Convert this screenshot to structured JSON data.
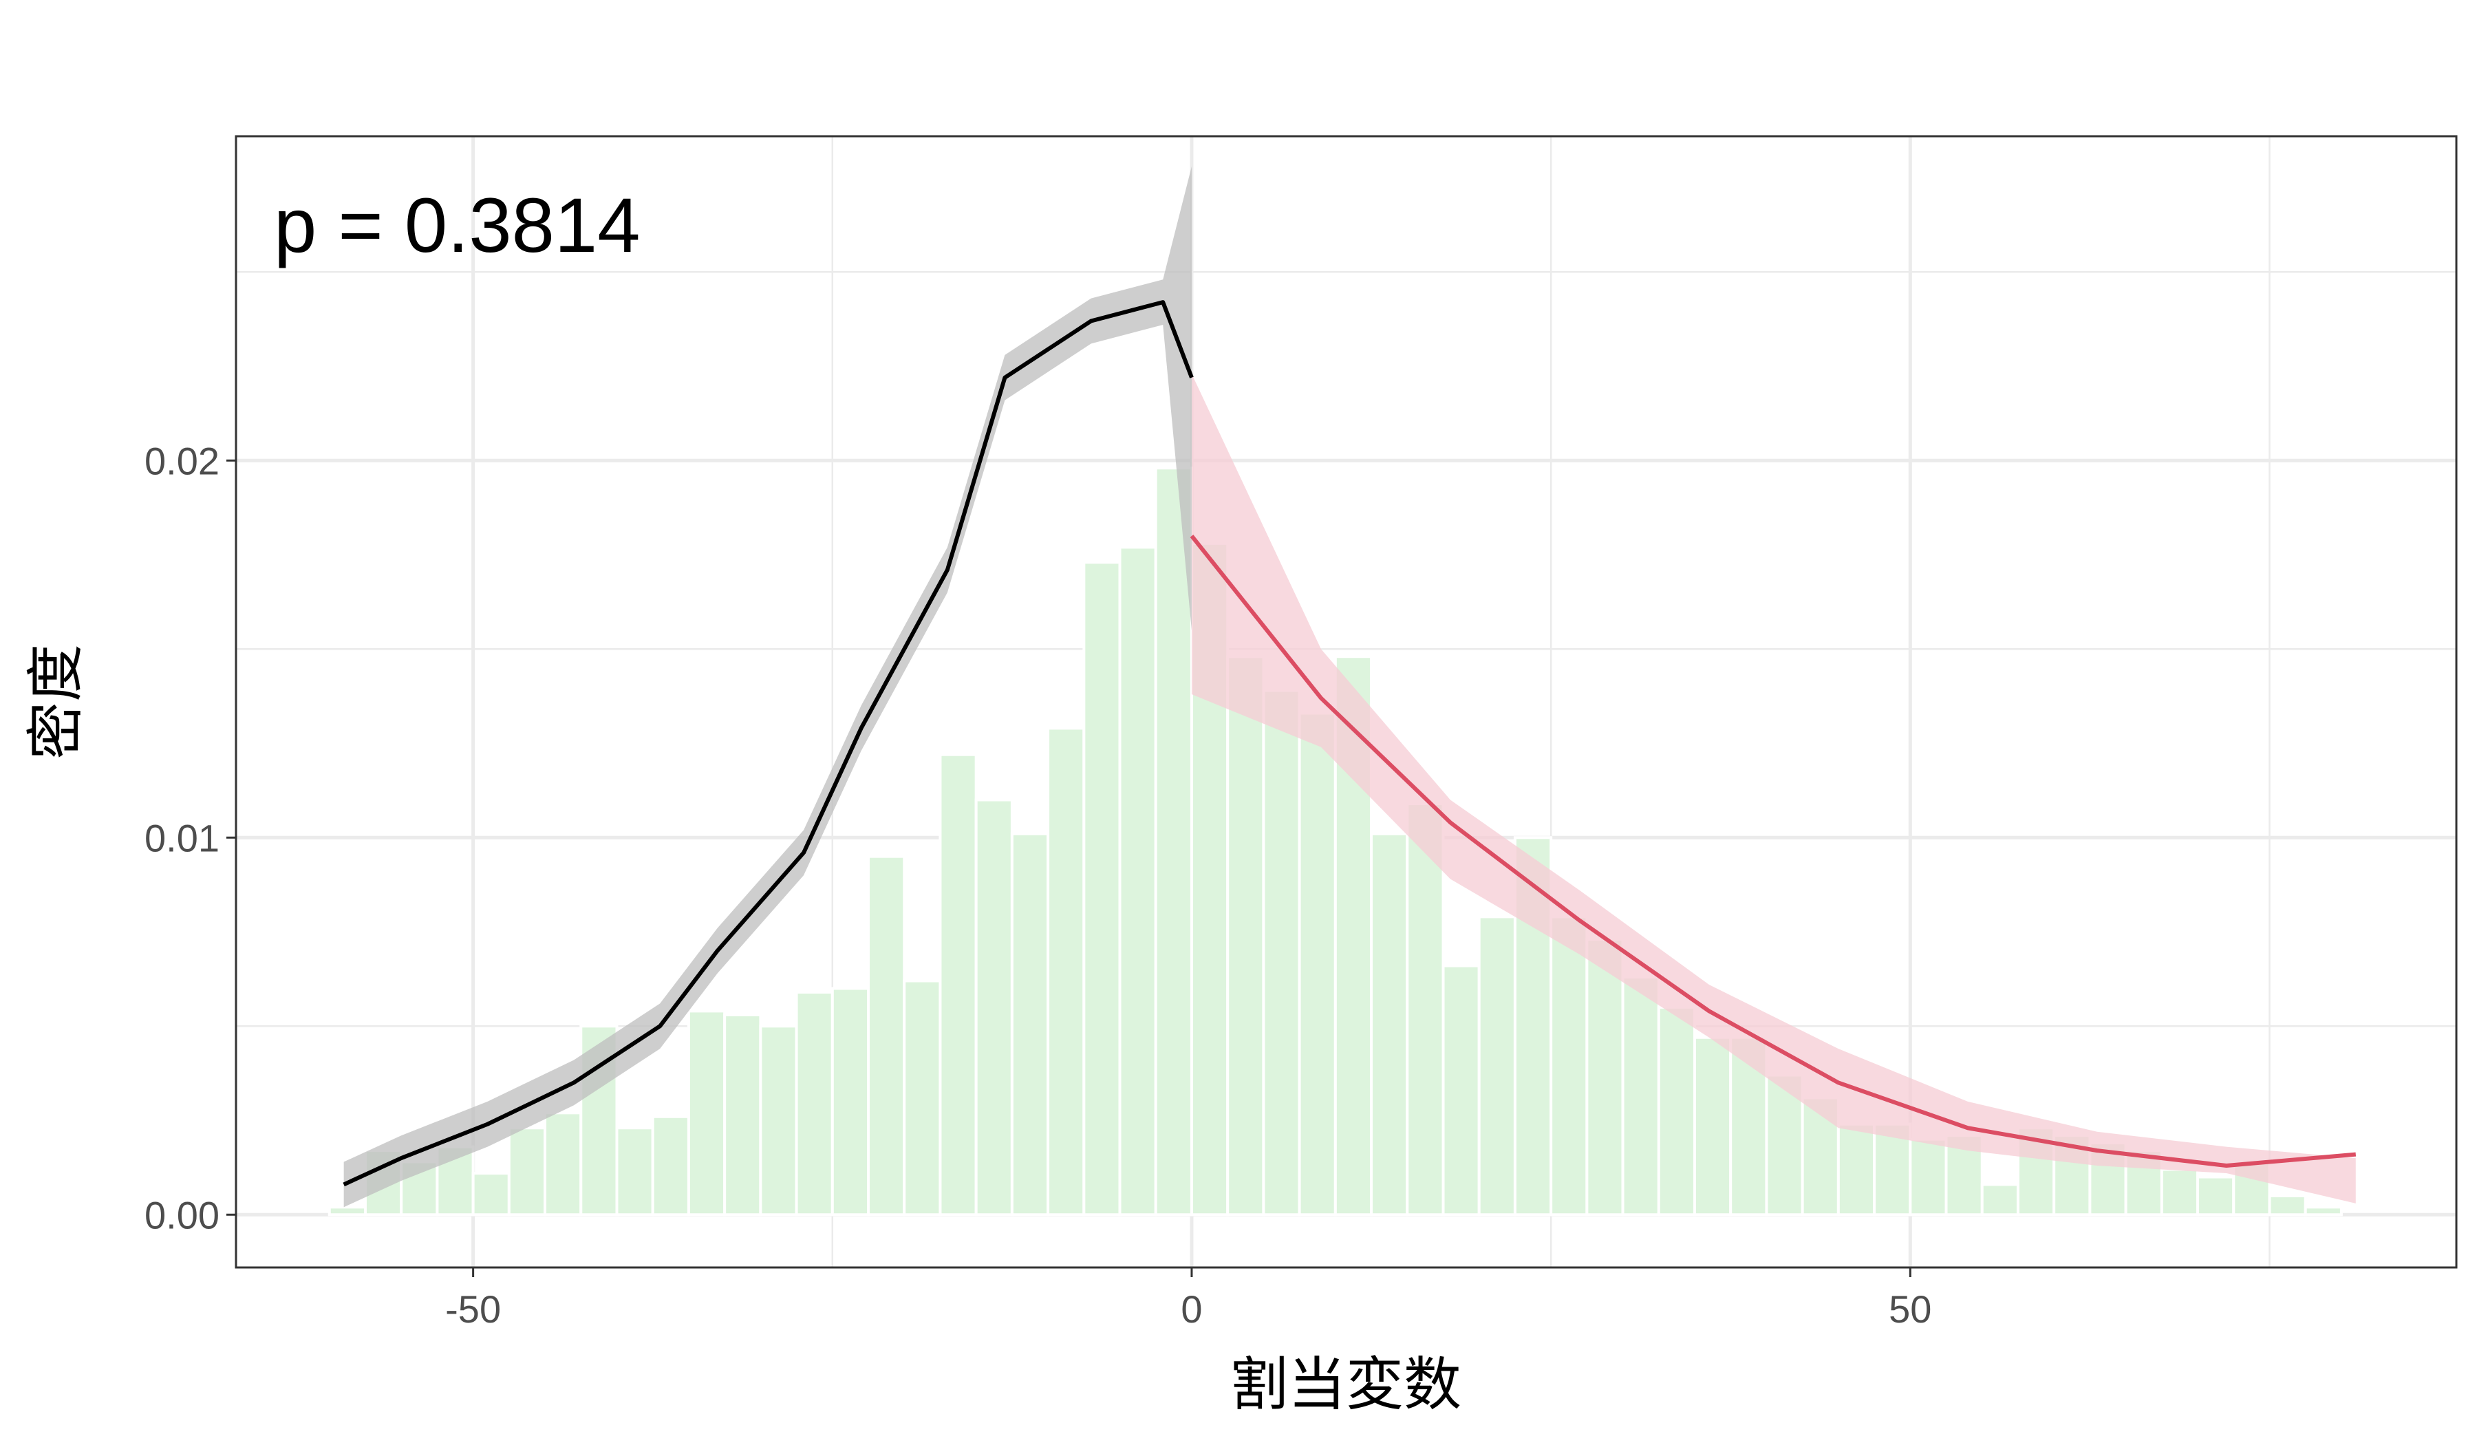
{
  "chart_data": {
    "type": "histogram",
    "xlabel": "割当変数",
    "ylabel": "密度",
    "xlim": [
      -66.5,
      88
    ],
    "ylim": [
      -0.0014,
      0.0286
    ],
    "x_ticks": [
      {
        "value": -50,
        "label": "-50"
      },
      {
        "value": 0,
        "label": "0"
      },
      {
        "value": 50,
        "label": "50"
      }
    ],
    "y_ticks": [
      {
        "value": 0.0,
        "label": "0.00"
      },
      {
        "value": 0.01,
        "label": "0.01"
      },
      {
        "value": 0.02,
        "label": "0.02"
      }
    ],
    "x_minor_gridlines": [
      -25,
      25,
      75
    ],
    "y_minor_gridlines": [
      0.005,
      0.015,
      0.025
    ],
    "grid": true,
    "annotation": "p = 0.3814",
    "histogram": {
      "bin_width": 2.5,
      "color": "#ddf4dd",
      "bins": [
        {
          "x": -58.75,
          "density": 0.0002
        },
        {
          "x": -56.25,
          "density": 0.0017
        },
        {
          "x": -53.75,
          "density": 0.0014
        },
        {
          "x": -51.25,
          "density": 0.0018
        },
        {
          "x": -48.75,
          "density": 0.0011
        },
        {
          "x": -46.25,
          "density": 0.0023
        },
        {
          "x": -43.75,
          "density": 0.0027
        },
        {
          "x": -41.25,
          "density": 0.005
        },
        {
          "x": -38.75,
          "density": 0.0023
        },
        {
          "x": -36.25,
          "density": 0.0026
        },
        {
          "x": -33.75,
          "density": 0.0054
        },
        {
          "x": -31.25,
          "density": 0.0053
        },
        {
          "x": -28.75,
          "density": 0.005
        },
        {
          "x": -26.25,
          "density": 0.0059
        },
        {
          "x": -23.75,
          "density": 0.006
        },
        {
          "x": -21.25,
          "density": 0.0095
        },
        {
          "x": -18.75,
          "density": 0.0062
        },
        {
          "x": -16.25,
          "density": 0.0122
        },
        {
          "x": -13.75,
          "density": 0.011
        },
        {
          "x": -11.25,
          "density": 0.0101
        },
        {
          "x": -8.75,
          "density": 0.0129
        },
        {
          "x": -6.25,
          "density": 0.0173
        },
        {
          "x": -3.75,
          "density": 0.0177
        },
        {
          "x": -1.25,
          "density": 0.0198
        },
        {
          "x": 1.25,
          "density": 0.0178
        },
        {
          "x": 3.75,
          "density": 0.0148
        },
        {
          "x": 6.25,
          "density": 0.0139
        },
        {
          "x": 8.75,
          "density": 0.0133
        },
        {
          "x": 11.25,
          "density": 0.0148
        },
        {
          "x": 13.75,
          "density": 0.0101
        },
        {
          "x": 16.25,
          "density": 0.0109
        },
        {
          "x": 18.75,
          "density": 0.0066
        },
        {
          "x": 21.25,
          "density": 0.0079
        },
        {
          "x": 23.75,
          "density": 0.01
        },
        {
          "x": 26.25,
          "density": 0.0079
        },
        {
          "x": 28.75,
          "density": 0.0073
        },
        {
          "x": 31.25,
          "density": 0.0063
        },
        {
          "x": 33.75,
          "density": 0.0055
        },
        {
          "x": 36.25,
          "density": 0.0047
        },
        {
          "x": 38.75,
          "density": 0.0047
        },
        {
          "x": 41.25,
          "density": 0.0037
        },
        {
          "x": 43.75,
          "density": 0.0031
        },
        {
          "x": 46.25,
          "density": 0.0024
        },
        {
          "x": 48.75,
          "density": 0.0024
        },
        {
          "x": 51.25,
          "density": 0.002
        },
        {
          "x": 53.75,
          "density": 0.0021
        },
        {
          "x": 56.25,
          "density": 0.0008
        },
        {
          "x": 58.75,
          "density": 0.0023
        },
        {
          "x": 61.25,
          "density": 0.0021
        },
        {
          "x": 63.75,
          "density": 0.0019
        },
        {
          "x": 66.25,
          "density": 0.0017
        },
        {
          "x": 68.75,
          "density": 0.0012
        },
        {
          "x": 71.25,
          "density": 0.001
        },
        {
          "x": 73.75,
          "density": 0.0014
        },
        {
          "x": 76.25,
          "density": 0.0005
        },
        {
          "x": 78.75,
          "density": 0.0002
        }
      ]
    },
    "series": [
      {
        "side": "left",
        "color": "#000000",
        "band_color": "#bebebe",
        "x": [
          -59,
          -55,
          -49,
          -43,
          -37,
          -33,
          -27,
          -23,
          -17,
          -13,
          -7,
          -2,
          0
        ],
        "y": [
          0.0008,
          0.0015,
          0.0024,
          0.0035,
          0.005,
          0.007,
          0.0096,
          0.0129,
          0.0171,
          0.0222,
          0.0237,
          0.0242,
          0.0222
        ],
        "lower": [
          0.0002,
          0.0009,
          0.0018,
          0.0029,
          0.0044,
          0.0064,
          0.009,
          0.0123,
          0.0165,
          0.0216,
          0.0231,
          0.0236,
          0.0155
        ],
        "upper": [
          0.0014,
          0.0021,
          0.003,
          0.0041,
          0.0056,
          0.0076,
          0.0102,
          0.0135,
          0.0177,
          0.0228,
          0.0243,
          0.0248,
          0.0278
        ]
      },
      {
        "side": "right",
        "color": "#dc4d63",
        "band_color": "#f6ccd4",
        "x": [
          0,
          9,
          18,
          27,
          36,
          45,
          54,
          63,
          72,
          81
        ],
        "y": [
          0.018,
          0.0137,
          0.0104,
          0.0078,
          0.0054,
          0.0035,
          0.0023,
          0.0017,
          0.0013,
          0.0016
        ],
        "lower": [
          0.0138,
          0.0124,
          0.0089,
          0.0069,
          0.0047,
          0.0023,
          0.0017,
          0.0013,
          0.0011,
          0.0003
        ],
        "upper": [
          0.0223,
          0.015,
          0.011,
          0.0086,
          0.0061,
          0.0044,
          0.003,
          0.0022,
          0.0018,
          0.0015
        ]
      }
    ]
  }
}
